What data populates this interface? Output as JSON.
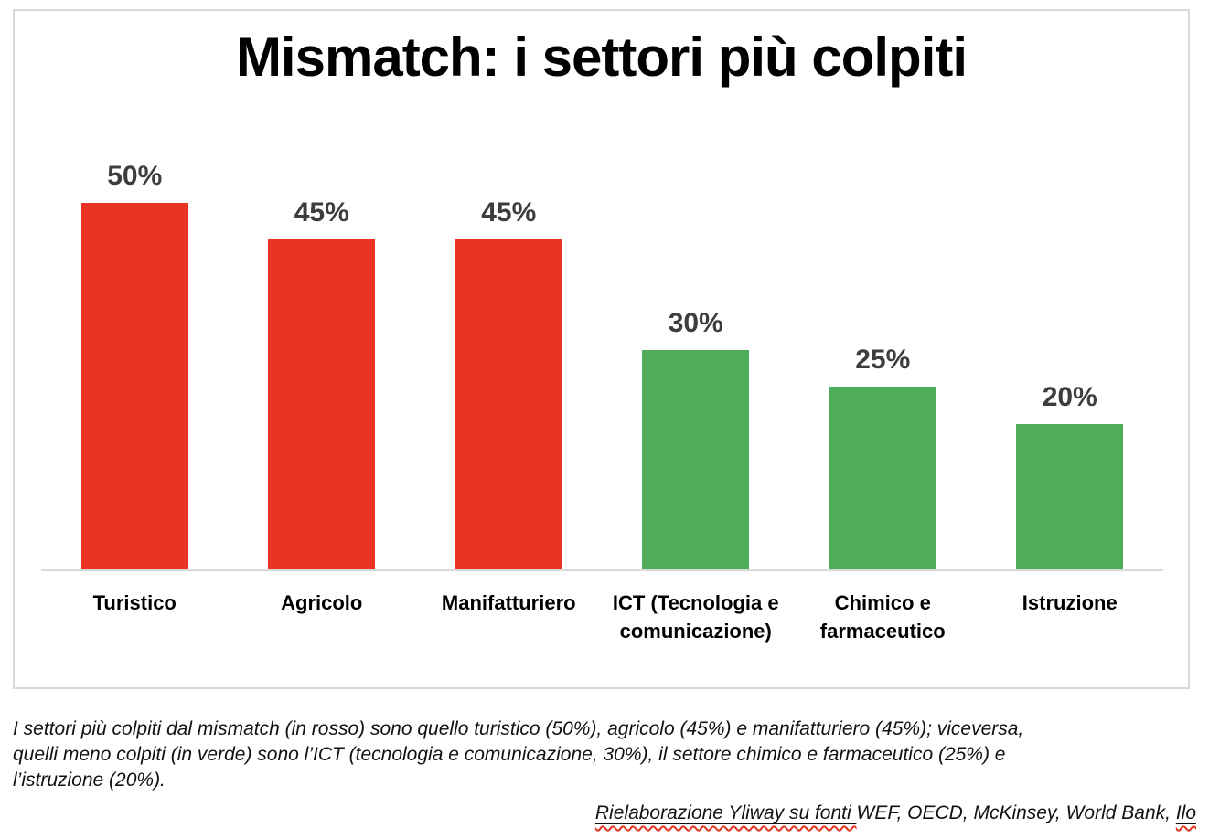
{
  "chart_data": {
    "type": "bar",
    "title": "Mismatch: i settori più colpiti",
    "categories": [
      "Turistico",
      "Agricolo",
      "Manifatturiero",
      "ICT (Tecnologia e comunicazione)",
      "Chimico e farmaceutico",
      "Istruzione"
    ],
    "values": [
      50,
      45,
      45,
      30,
      25,
      20
    ],
    "value_labels": [
      "50%",
      "45%",
      "45%",
      "30%",
      "25%",
      "20%"
    ],
    "bar_colors": [
      "#E93323",
      "#E93323",
      "#E93323",
      "#4EAC5B",
      "#4EAC5B",
      "#4EAC5B"
    ],
    "ylim": [
      0,
      50
    ],
    "xlabel": "",
    "ylabel": "",
    "grid": false,
    "legend": "none",
    "y_axis_visible": false,
    "x_axis_line_color": "#D9D9D9"
  },
  "caption": {
    "lines": [
      "I settori più colpiti dal mismatch (in rosso) sono quello turistico (50%), agricolo (45%) e manifatturiero (45%); viceversa,",
      "quelli meno colpiti (in verde) sono l’ICT (tecnologia e comunicazione, 30%), il settore chimico e farmaceutico (25%) e",
      "l’istruzione (20%)."
    ]
  },
  "source": {
    "segments": [
      {
        "text": "Rielaborazione Yliway su fonti ",
        "underline": true,
        "squiggle": true
      },
      {
        "text": "WEF, OECD, McKinsey, World Bank, ",
        "underline": false,
        "squiggle": false
      },
      {
        "text": "Ilo",
        "underline": true,
        "squiggle": true
      }
    ]
  },
  "colors": {
    "bar_red": "#E93323",
    "bar_green": "#4EAC5B",
    "axis_gray": "#D9D9D9",
    "value_label_gray": "#3D3D3D",
    "panel_border": "#D9D9D9",
    "squiggle_red": "#E0341F"
  }
}
